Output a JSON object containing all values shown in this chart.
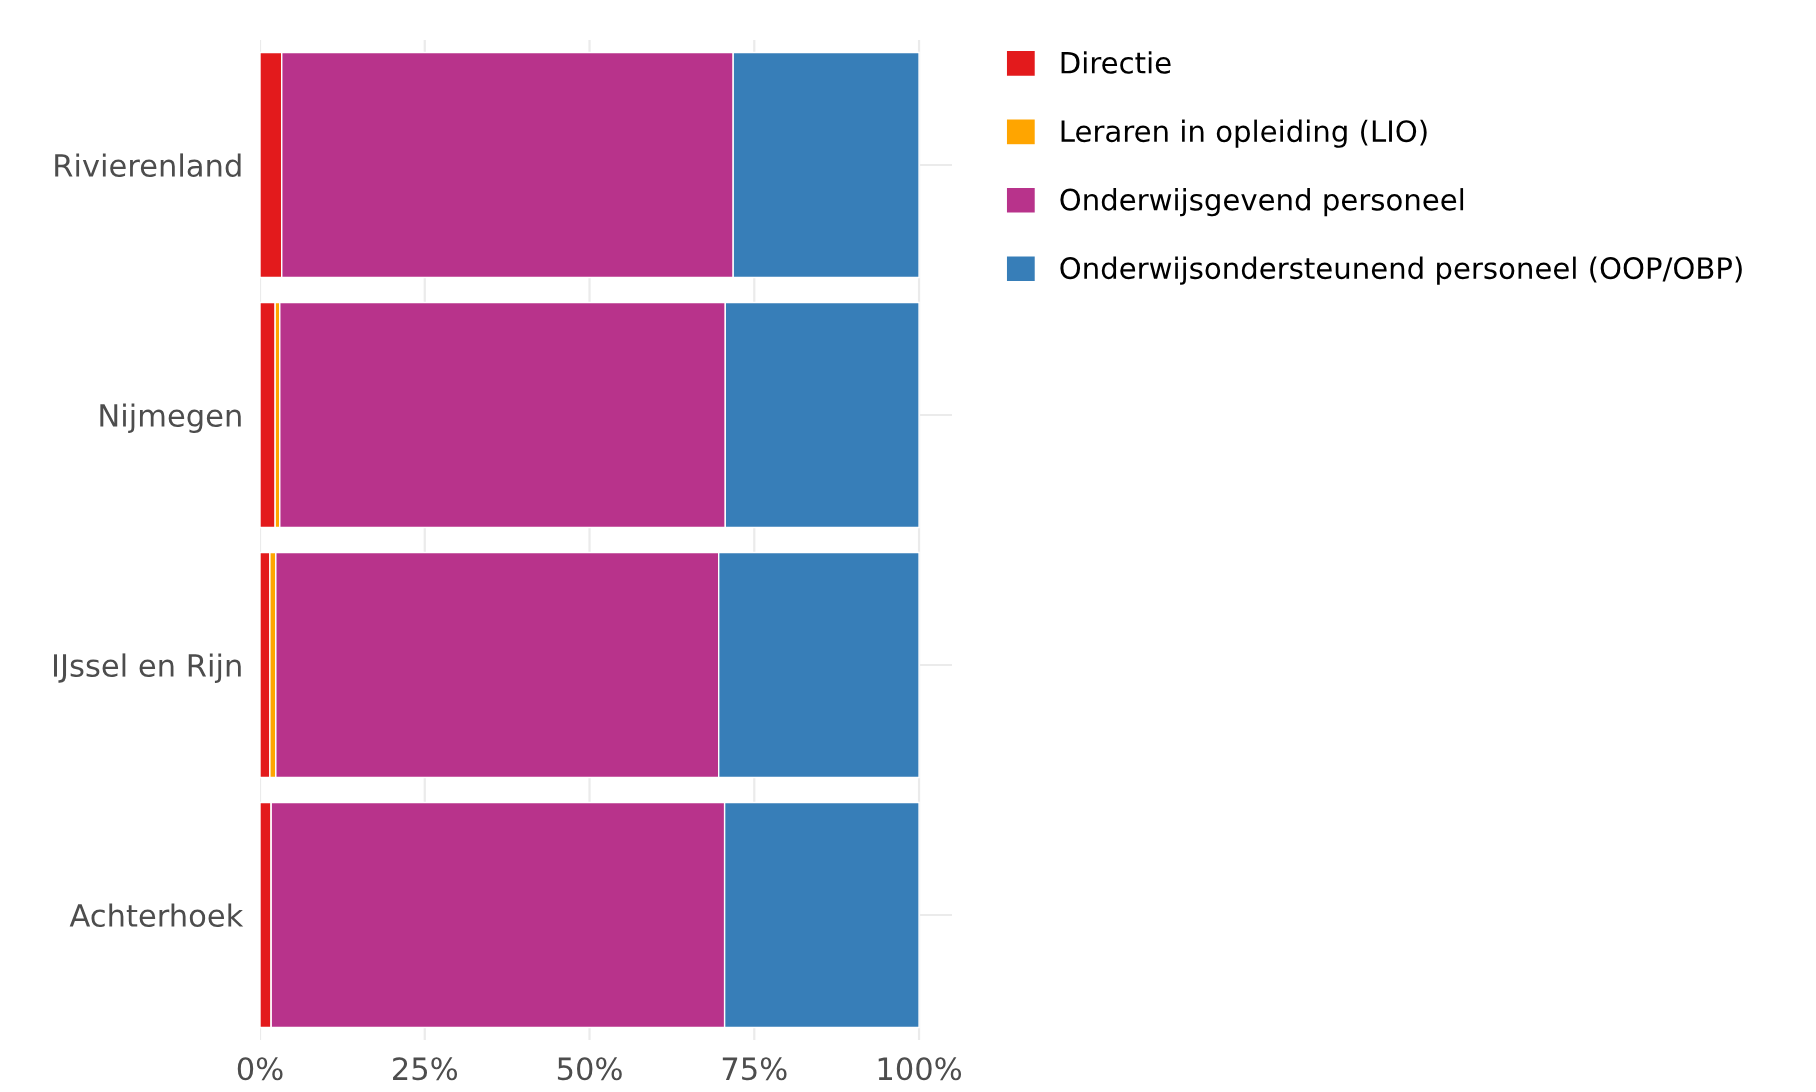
{
  "chart_data": {
    "type": "bar",
    "orientation": "horizontal",
    "stacked": true,
    "categories": [
      "Rivierenland",
      "Nijmegen",
      "IJssel en Rijn",
      "Achterhoek"
    ],
    "series": [
      {
        "name": "Directie",
        "color": "#e31a1c",
        "values": [
          3.3,
          2.3,
          1.5,
          1.7
        ]
      },
      {
        "name": "Leraren in opleiding (LIO)",
        "color": "#ffa500",
        "values": [
          0,
          0.7,
          0.9,
          0
        ]
      },
      {
        "name": "Onderwijsgevend personeel",
        "color": "#b8338b",
        "values": [
          68.5,
          67.6,
          67.2,
          68.8
        ]
      },
      {
        "name": "Onderwijsondersteunend personeel (OOP/OBP)",
        "color": "#377eb8",
        "values": [
          28.2,
          29.4,
          30.4,
          29.5
        ]
      }
    ],
    "xlim": [
      0,
      105
    ],
    "xticks": [
      {
        "value": 0,
        "label": "0%"
      },
      {
        "value": 25,
        "label": "25%"
      },
      {
        "value": 50,
        "label": "50%"
      },
      {
        "value": 75,
        "label": "75%"
      },
      {
        "value": 100,
        "label": "100%"
      }
    ],
    "grid": true,
    "legend": "top right"
  }
}
